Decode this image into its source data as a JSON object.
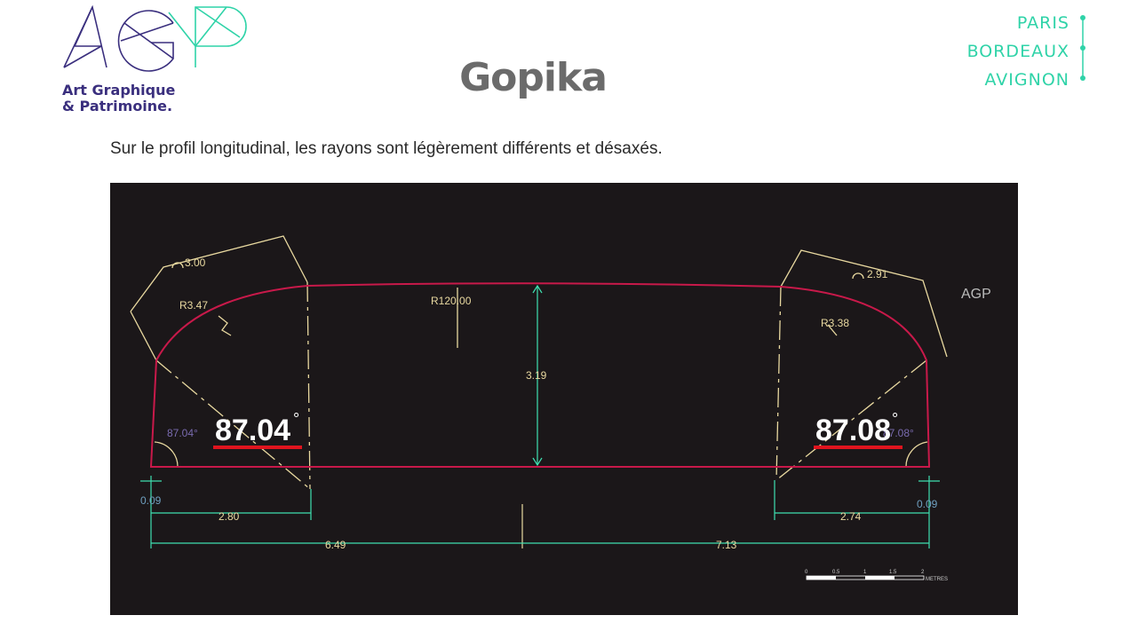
{
  "header": {
    "logo_text": "AGP",
    "logo_subtitle_line1": "Art Graphique",
    "logo_subtitle_line2": "& Patrimoine.",
    "cities": [
      "PARIS",
      "BORDEAUX",
      "AVIGNON"
    ],
    "title": "Gopika",
    "caption": "Sur le profil longitudinal, les rayons sont légèrement différents et désaxés."
  },
  "drawing": {
    "arc_left_label": "3.00",
    "arc_right_label": "2.91",
    "radius_left": "R3.47",
    "radius_center": "R120.00",
    "radius_right": "R3.38",
    "height": "3.19",
    "angle_left_small": "87.04°",
    "angle_right_small": "87.08°",
    "angle_left_big": "87.04",
    "angle_right_big": "87.08",
    "degree": "°",
    "offset_left": "0.09",
    "offset_right": "0.09",
    "dim_left_short": "2.80",
    "dim_right_short": "2.74",
    "dim_left_long": "6.49",
    "dim_right_long": "7.13",
    "scale_ticks": [
      "0",
      "0.5",
      "1",
      "1.5",
      "2"
    ],
    "scale_unit": "METRES",
    "watermark": "AGP",
    "colors": {
      "profile": "#c8194a",
      "construction": "#e9d9a0",
      "dimension": "#3fe0b0",
      "angle_underline": "#e0141e"
    }
  }
}
